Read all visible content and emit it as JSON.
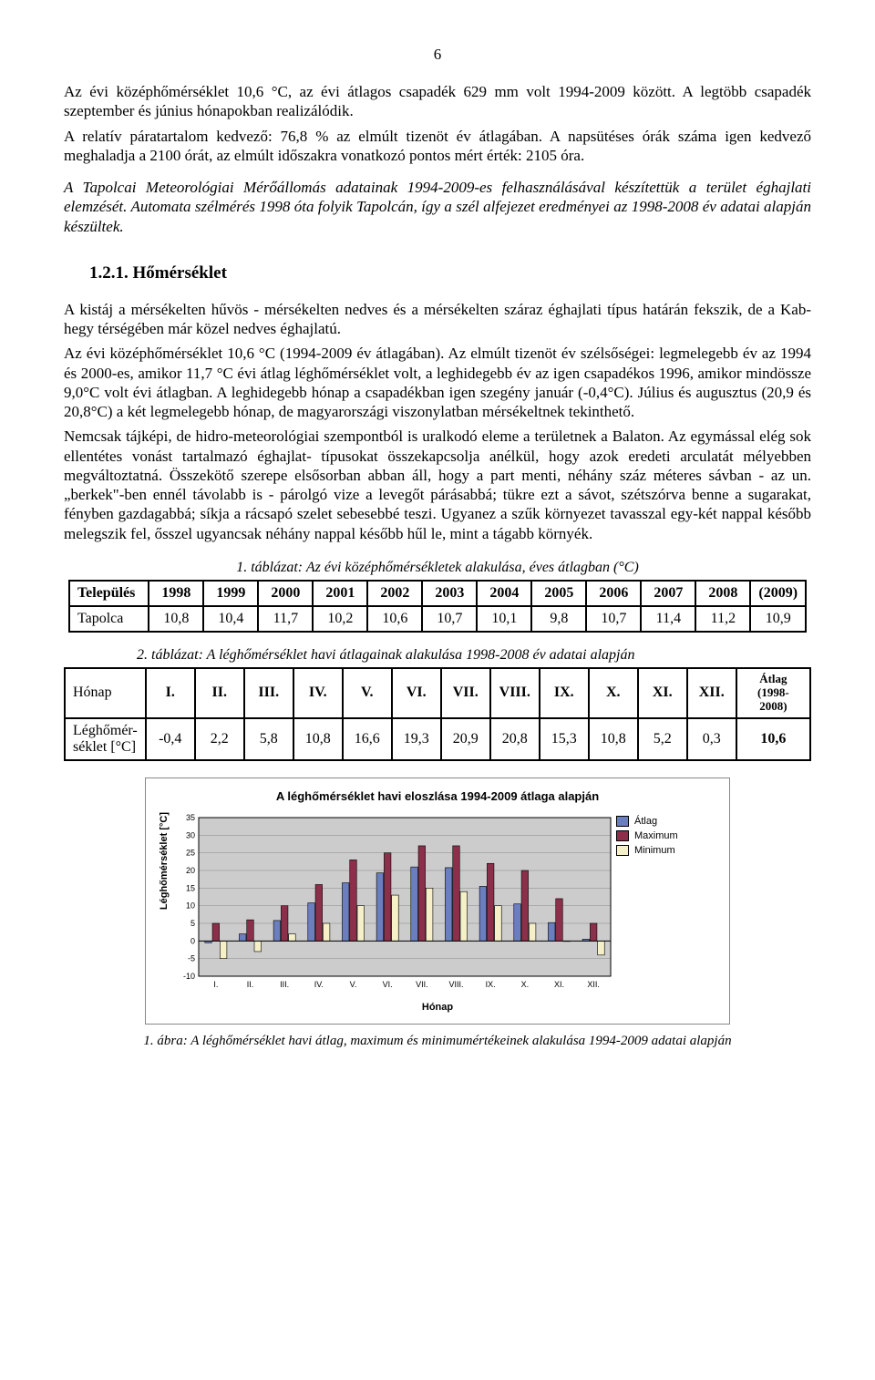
{
  "page_number": "6",
  "intro": {
    "p1": "Az évi középhőmérséklet 10,6 °C, az évi átlagos csapadék 629 mm volt 1994-2009 között. A legtöbb csapadék szeptember és június hónapokban realizálódik.",
    "p2": "A relatív páratartalom kedvező: 76,8 % az elmúlt tizenöt év átlagában. A napsütéses órák száma igen kedvező meghaladja a 2100 órát, az elmúlt időszakra vonatkozó pontos mért érték: 2105 óra.",
    "italic": "A Tapolcai Meteorológiai Mérőállomás adatainak 1994-2009-es felhasználásával készítettük a terület éghajlati elemzését. Automata szélmérés 1998 óta folyik Tapolcán, így a szél alfejezet eredményei az 1998-2008 év adatai alapján készültek."
  },
  "section_heading": "1.2.1. Hőmérséklet",
  "body": {
    "p1": "A kistáj a mérsékelten hűvös - mérsékelten nedves és a mérsékelten száraz éghajlati típus határán fekszik, de a Kab-hegy térségében már közel nedves éghajlatú.",
    "p2": "Az évi középhőmérséklet 10,6 °C (1994-2009 év átlagában). Az elmúlt tizenöt év szélsőségei: legmelegebb év az 1994 és 2000-es, amikor 11,7 °C évi átlag léghőmérséklet volt, a leghidegebb év az igen csapadékos 1996, amikor mindössze 9,0°C volt évi átlagban. A leghidegebb hónap a csapadékban igen szegény január (-0,4°C). Július és augusztus (20,9 és 20,8°C) a két legmelegebb hónap, de magyarországi viszonylatban mérsékeltnek tekinthető.",
    "p3": "Nemcsak tájképi, de hidro-meteorológiai szempontból is uralkodó eleme a területnek a Balaton. Az egymással elég sok ellentétes vonást tartalmazó éghajlat- típusokat összekapcsolja anélkül, hogy azok eredeti arculatát mélyebben megváltoztatná. Összekötő szerepe elsősorban abban áll, hogy a part menti, néhány száz méteres sávban - az un. „berkek\"-ben ennél távolabb is - párolgó vize a levegőt párásabbá; tükre ezt a sávot, szétszórva benne a sugarakat, fényben gazdagabbá; síkja a rácsapó szelet sebesebbé teszi. Ugyanez a szűk környezet tavasszal egy-két nappal később melegszik fel, ősszel ugyancsak néhány nappal később hűl le, mint a tágabb környék."
  },
  "table1": {
    "caption": "1. táblázat: Az évi középhőmérsékletek alakulása, éves átlagban (°C)",
    "header_label": "Település",
    "years": [
      "1998",
      "1999",
      "2000",
      "2001",
      "2002",
      "2003",
      "2004",
      "2005",
      "2006",
      "2007",
      "2008",
      "(2009)"
    ],
    "row_label": "Tapolca",
    "values": [
      "10,8",
      "10,4",
      "11,7",
      "10,2",
      "10,6",
      "10,7",
      "10,1",
      "9,8",
      "10,7",
      "11,4",
      "11,2",
      "10,9"
    ]
  },
  "table2": {
    "caption": "2.   táblázat: A léghőmérséklet havi átlagainak alakulása 1998-2008 év adatai alapján",
    "header_label": "Hónap",
    "months": [
      "I.",
      "II.",
      "III.",
      "IV.",
      "V.",
      "VI.",
      "VII.",
      "VIII.",
      "IX.",
      "X.",
      "XI.",
      "XII."
    ],
    "avg_header": "Átlag (1998-2008)",
    "row_label": "Léghőmér-séklet [°C]",
    "values": [
      "-0,4",
      "2,2",
      "5,8",
      "10,8",
      "16,6",
      "19,3",
      "20,9",
      "20,8",
      "15,3",
      "10,8",
      "5,2",
      "0,3"
    ],
    "avg_value": "10,6"
  },
  "chart": {
    "type": "bar",
    "title": "A léghőmérséklet havi eloszlása 1994-2009 átlaga alapján",
    "ylabel": "Léghőmérséklet [°C]",
    "xlabel": "Hónap",
    "categories": [
      "I.",
      "II.",
      "III.",
      "IV.",
      "V.",
      "VI.",
      "VII.",
      "VIII.",
      "IX.",
      "X.",
      "XI.",
      "XII."
    ],
    "series": [
      {
        "name": "Átlag",
        "color": "#6b7fbf",
        "values": [
          -0.5,
          2.0,
          5.8,
          10.8,
          16.5,
          19.3,
          21,
          20.8,
          15.5,
          10.5,
          5.2,
          0.5
        ]
      },
      {
        "name": "Maximum",
        "color": "#8b2f4a",
        "values": [
          5,
          6,
          10,
          16,
          23,
          25,
          27,
          27,
          22,
          20,
          12,
          5
        ]
      },
      {
        "name": "Minimum",
        "color": "#f5f0c8",
        "values": [
          -5,
          -3,
          2,
          5,
          10,
          13,
          15,
          14,
          10,
          5,
          0,
          -4
        ]
      }
    ],
    "ylim": [
      -10,
      35
    ],
    "ytick_step": 5,
    "background_color": "#ffffff",
    "plot_bg": "#cccccc",
    "bar_border": "#000000",
    "axis_color": "#000000",
    "legend_border": "#000000",
    "font_family": "Arial"
  },
  "figure_caption": "1. ábra: A léghőmérséklet havi átlag, maximum és minimumértékeinek alakulása 1994-2009 adatai alapján"
}
